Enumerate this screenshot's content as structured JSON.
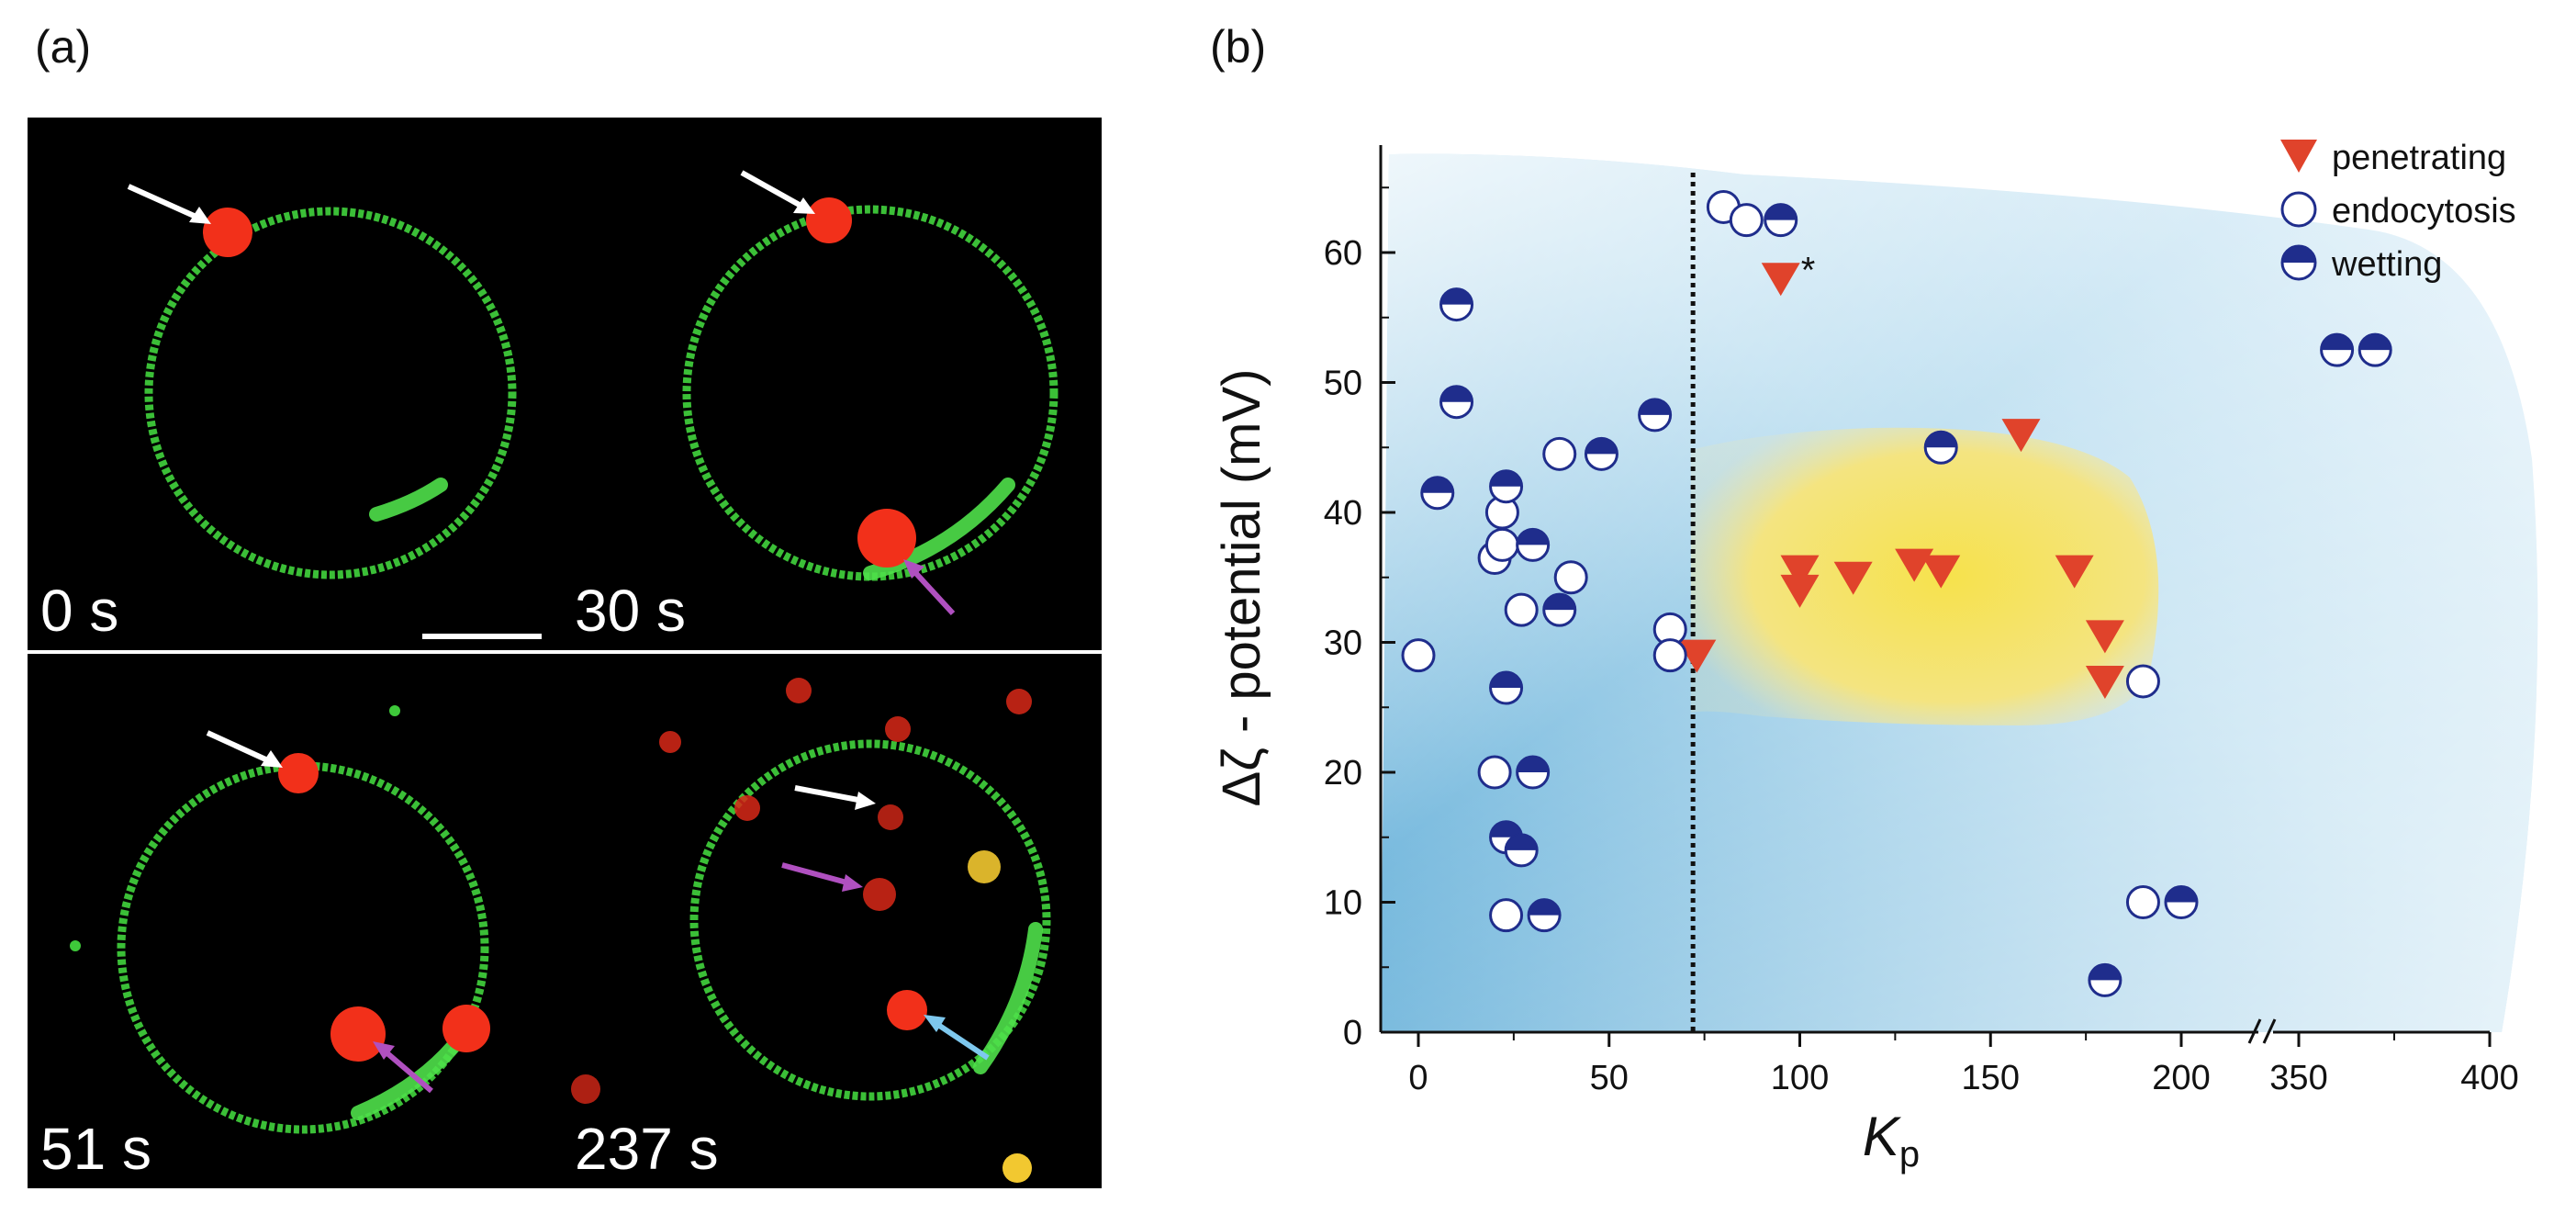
{
  "panel_a": {
    "label": "(a)",
    "frames": [
      {
        "time": "0 s"
      },
      {
        "time": "30 s"
      },
      {
        "time": "51 s"
      },
      {
        "time": "237 s"
      }
    ],
    "colors": {
      "membrane": "#3ec93a",
      "particle": "#f2301a",
      "arrow_white": "#ffffff",
      "arrow_purple": "#b050c0",
      "arrow_blue": "#7ec8ee"
    }
  },
  "panel_b": {
    "label": "(b)",
    "legend": [
      {
        "name": "penetrating",
        "icon": "red-triangle-icon"
      },
      {
        "name": "endocytosis",
        "icon": "open-circle-icon"
      },
      {
        "name": "wetting",
        "icon": "half-filled-circle-icon"
      }
    ],
    "asterisk": "*",
    "xlabel_main": "K",
    "xlabel_sub": "p",
    "ylabel": "Δζ - potential (mV)",
    "colors": {
      "penetrating": "#e0432b",
      "circle_edge": "#1f2d8c",
      "wetting_fill": "#1f2d8c",
      "region_blue": "#8cc4e0",
      "region_yellow": "#f4e25a"
    }
  },
  "chart_data": {
    "type": "scatter",
    "title": "",
    "xlabel": "Kp",
    "ylabel": "Δζ - potential (mV)",
    "x_axis_break": [
      220,
      350
    ],
    "xlim": [
      -10,
      400
    ],
    "ylim": [
      0,
      68
    ],
    "xticks": [
      "0",
      "50",
      "100",
      "150",
      "200",
      "350",
      "400"
    ],
    "yticks": [
      "0",
      "10",
      "20",
      "30",
      "40",
      "50",
      "60"
    ],
    "threshold_x": 72,
    "series": [
      {
        "name": "penetrating",
        "points": [
          [
            95,
            58
          ],
          [
            73,
            29
          ],
          [
            100,
            35.5
          ],
          [
            100,
            34
          ],
          [
            114,
            35
          ],
          [
            130,
            36
          ],
          [
            137,
            35.5
          ],
          [
            158,
            46
          ],
          [
            172,
            35.5
          ],
          [
            180,
            30.5
          ],
          [
            180,
            27
          ]
        ]
      },
      {
        "name": "endocytosis",
        "points": [
          [
            0,
            29
          ],
          [
            20,
            36.5
          ],
          [
            22,
            37.5
          ],
          [
            22,
            40
          ],
          [
            27,
            32.5
          ],
          [
            40,
            35
          ],
          [
            37,
            44.5
          ],
          [
            66,
            31
          ],
          [
            66,
            29
          ],
          [
            80,
            63.5
          ],
          [
            86,
            62.5
          ],
          [
            20,
            20
          ],
          [
            23,
            9
          ],
          [
            190,
            27
          ],
          [
            190,
            10
          ]
        ]
      },
      {
        "name": "wetting",
        "points": [
          [
            10,
            56
          ],
          [
            10,
            48.5
          ],
          [
            5,
            41.5
          ],
          [
            23,
            42
          ],
          [
            30,
            37.5
          ],
          [
            37,
            32.5
          ],
          [
            48,
            44.5
          ],
          [
            62,
            47.5
          ],
          [
            23,
            26.5
          ],
          [
            30,
            20
          ],
          [
            23,
            15
          ],
          [
            27,
            14
          ],
          [
            33,
            9
          ],
          [
            95,
            62.5
          ],
          [
            137,
            45
          ],
          [
            180,
            4
          ],
          [
            200,
            10
          ],
          [
            360,
            52.5
          ],
          [
            370,
            52.5
          ]
        ]
      }
    ]
  }
}
